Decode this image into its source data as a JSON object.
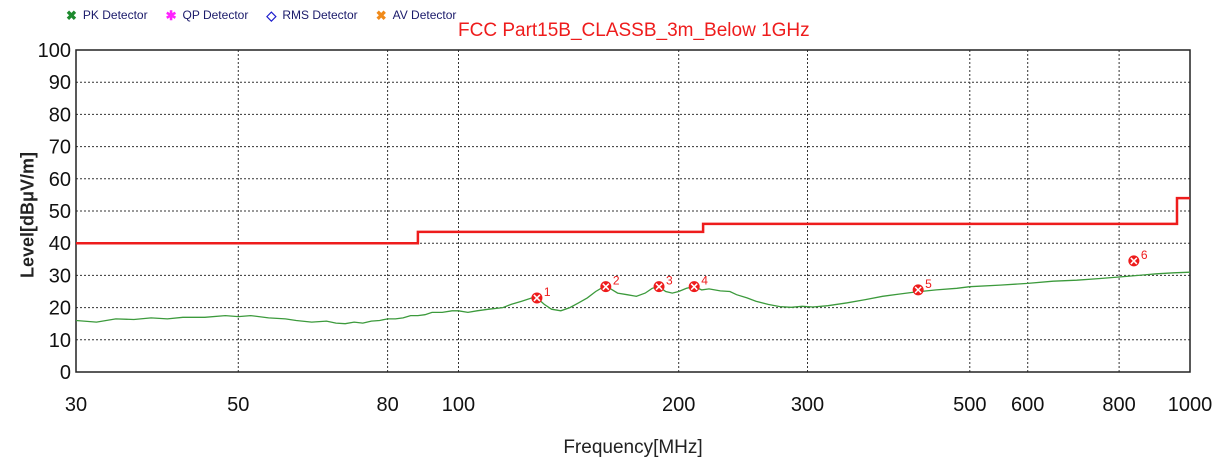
{
  "legend": [
    {
      "label": "PK Detector",
      "marker": "✖",
      "color": "#1d8a2e"
    },
    {
      "label": "QP Detector",
      "marker": "✱",
      "color": "#ff22ff"
    },
    {
      "label": "RMS Detector",
      "marker": "◇",
      "color": "#1a1acc"
    },
    {
      "label": "AV Detector",
      "marker": "✖",
      "color": "#f08a1a"
    }
  ],
  "chart_data": {
    "type": "line",
    "title": "FCC Part15B_CLASSB_3m_Below 1GHz",
    "xlabel": "Frequency[MHz]",
    "ylabel": "Level[dBμV/m]",
    "x_scale": "log",
    "xlim": [
      30,
      1000
    ],
    "ylim": [
      0,
      100
    ],
    "x_ticks": [
      30,
      50,
      80,
      100,
      200,
      300,
      500,
      600,
      800,
      1000
    ],
    "y_ticks": [
      0,
      10,
      20,
      30,
      40,
      50,
      60,
      70,
      80,
      90,
      100
    ],
    "grid": true,
    "limit_line": {
      "color": "#ee1c1c",
      "points": [
        [
          30,
          40
        ],
        [
          88,
          40
        ],
        [
          88,
          43.5
        ],
        [
          216,
          43.5
        ],
        [
          216,
          46
        ],
        [
          960,
          46
        ],
        [
          960,
          54
        ],
        [
          1000,
          54
        ]
      ]
    },
    "series": [
      {
        "type": "trace",
        "color": "#3c9a3c",
        "points": [
          [
            30,
            16
          ],
          [
            32,
            15.5
          ],
          [
            34,
            16.5
          ],
          [
            36,
            16.3
          ],
          [
            38,
            16.8
          ],
          [
            40,
            16.5
          ],
          [
            42,
            17
          ],
          [
            45,
            17
          ],
          [
            48,
            17.5
          ],
          [
            50,
            17.2
          ],
          [
            52,
            17.5
          ],
          [
            55,
            16.8
          ],
          [
            58,
            16.5
          ],
          [
            60,
            16
          ],
          [
            63,
            15.5
          ],
          [
            66,
            15.8
          ],
          [
            68,
            15.2
          ],
          [
            70,
            15
          ],
          [
            72,
            15.5
          ],
          [
            74,
            15.2
          ],
          [
            76,
            15.8
          ],
          [
            78,
            16
          ],
          [
            80,
            16.5
          ],
          [
            82,
            16.5
          ],
          [
            84,
            16.8
          ],
          [
            86,
            17.5
          ],
          [
            88,
            17.5
          ],
          [
            90,
            17.8
          ],
          [
            92,
            18.5
          ],
          [
            95,
            18.5
          ],
          [
            98,
            19
          ],
          [
            100,
            19
          ],
          [
            103,
            18.5
          ],
          [
            106,
            19
          ],
          [
            110,
            19.5
          ],
          [
            115,
            20
          ],
          [
            118,
            21
          ],
          [
            122,
            22
          ],
          [
            126,
            23
          ],
          [
            128,
            23
          ],
          [
            131,
            21
          ],
          [
            134,
            19.5
          ],
          [
            138,
            19
          ],
          [
            142,
            20
          ],
          [
            146,
            21.5
          ],
          [
            150,
            23
          ],
          [
            154,
            25
          ],
          [
            158,
            26.5
          ],
          [
            161,
            26
          ],
          [
            165,
            24.5
          ],
          [
            170,
            24
          ],
          [
            175,
            23.5
          ],
          [
            180,
            24.5
          ],
          [
            184,
            26
          ],
          [
            188,
            26.5
          ],
          [
            192,
            25
          ],
          [
            196,
            24.5
          ],
          [
            200,
            25
          ],
          [
            205,
            26
          ],
          [
            210,
            26.5
          ],
          [
            215,
            25.5
          ],
          [
            220,
            25.8
          ],
          [
            228,
            25.2
          ],
          [
            235,
            25
          ],
          [
            240,
            24
          ],
          [
            248,
            23
          ],
          [
            255,
            22
          ],
          [
            265,
            21
          ],
          [
            275,
            20.3
          ],
          [
            285,
            20.1
          ],
          [
            295,
            20.4
          ],
          [
            305,
            20.2
          ],
          [
            320,
            20.6
          ],
          [
            340,
            21.5
          ],
          [
            360,
            22.5
          ],
          [
            380,
            23.5
          ],
          [
            400,
            24.2
          ],
          [
            420,
            24.8
          ],
          [
            450,
            25.5
          ],
          [
            480,
            26
          ],
          [
            500,
            26.5
          ],
          [
            550,
            27
          ],
          [
            600,
            27.5
          ],
          [
            650,
            28.2
          ],
          [
            700,
            28.5
          ],
          [
            750,
            29
          ],
          [
            800,
            29.5
          ],
          [
            850,
            30
          ],
          [
            900,
            30.5
          ],
          [
            950,
            30.8
          ],
          [
            1000,
            31
          ]
        ]
      }
    ],
    "markers": [
      {
        "label": "1",
        "freq": 128,
        "level": 23
      },
      {
        "label": "2",
        "freq": 159,
        "level": 26.5
      },
      {
        "label": "3",
        "freq": 188,
        "level": 26.5
      },
      {
        "label": "4",
        "freq": 210,
        "level": 26.5
      },
      {
        "label": "5",
        "freq": 425,
        "level": 25.5
      },
      {
        "label": "6",
        "freq": 838,
        "level": 34.5
      }
    ]
  }
}
